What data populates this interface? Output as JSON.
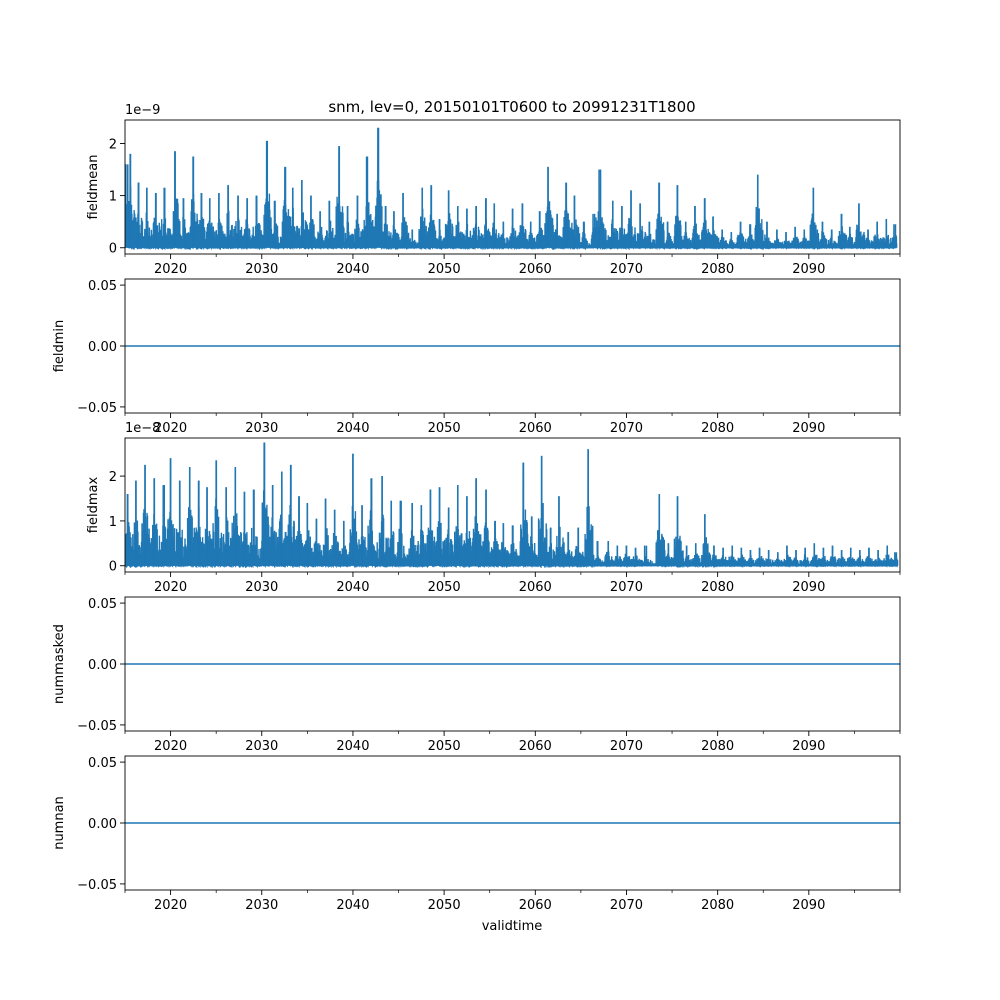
{
  "figure": {
    "title": "snm, lev=0, 20150101T0600 to 20991231T1800",
    "xlabel": "validtime"
  },
  "chart_data": [
    {
      "type": "line",
      "ylabel": "fieldmean",
      "offset_text": "1e−9",
      "scale": 1e-09,
      "xlim": [
        2015.0,
        2100.0
      ],
      "ylim": [
        -1.2e-10,
        2.45e-09
      ],
      "x_ticks": [
        2020,
        2030,
        2040,
        2050,
        2060,
        2070,
        2080,
        2090
      ],
      "x_tick_labels": [
        "2020",
        "2030",
        "2040",
        "2050",
        "2060",
        "2070",
        "2080",
        "2090"
      ],
      "y_ticks": [
        0,
        1e-09,
        2e-09
      ],
      "y_tick_labels": [
        "0",
        "1",
        "2"
      ],
      "color": "#1f77b4",
      "peaks": [
        {
          "x": 2015.3,
          "y": 1.6e-09
        },
        {
          "x": 2015.6,
          "y": 1.8e-09
        },
        {
          "x": 2016.5,
          "y": 1.25e-09
        },
        {
          "x": 2017.4,
          "y": 1.15e-09
        },
        {
          "x": 2018.4,
          "y": 1.05e-09
        },
        {
          "x": 2019.3,
          "y": 1.15e-09
        },
        {
          "x": 2020.5,
          "y": 1.85e-09
        },
        {
          "x": 2021.4,
          "y": 9.5e-10
        },
        {
          "x": 2022.5,
          "y": 1.75e-09
        },
        {
          "x": 2023.4,
          "y": 1.05e-09
        },
        {
          "x": 2024.3,
          "y": 9.5e-10
        },
        {
          "x": 2025.3,
          "y": 1.05e-09
        },
        {
          "x": 2026.3,
          "y": 1.2e-09
        },
        {
          "x": 2027.4,
          "y": 1e-09
        },
        {
          "x": 2028.4,
          "y": 9.5e-10
        },
        {
          "x": 2029.4,
          "y": 1e-09
        },
        {
          "x": 2030.6,
          "y": 2.05e-09
        },
        {
          "x": 2031.4,
          "y": 9e-10
        },
        {
          "x": 2032.6,
          "y": 1.55e-09
        },
        {
          "x": 2033.4,
          "y": 1.15e-09
        },
        {
          "x": 2034.4,
          "y": 1.3e-09
        },
        {
          "x": 2035.4,
          "y": 1e-09
        },
        {
          "x": 2036.4,
          "y": 7e-10
        },
        {
          "x": 2037.4,
          "y": 9e-10
        },
        {
          "x": 2038.5,
          "y": 1.95e-09
        },
        {
          "x": 2039.4,
          "y": 8e-10
        },
        {
          "x": 2040.5,
          "y": 1e-09
        },
        {
          "x": 2041.5,
          "y": 1.75e-09
        },
        {
          "x": 2042.8,
          "y": 2.3e-09
        },
        {
          "x": 2043.6,
          "y": 8e-10
        },
        {
          "x": 2044.5,
          "y": 7e-10
        },
        {
          "x": 2045.5,
          "y": 1.05e-09
        },
        {
          "x": 2046.5,
          "y": 3.5e-10
        },
        {
          "x": 2047.6,
          "y": 1.15e-09
        },
        {
          "x": 2048.6,
          "y": 1.2e-09
        },
        {
          "x": 2049.5,
          "y": 5.5e-10
        },
        {
          "x": 2050.5,
          "y": 1.1e-09
        },
        {
          "x": 2051.5,
          "y": 8e-10
        },
        {
          "x": 2052.5,
          "y": 7.5e-10
        },
        {
          "x": 2053.5,
          "y": 8e-10
        },
        {
          "x": 2054.6,
          "y": 9.5e-10
        },
        {
          "x": 2055.5,
          "y": 8.5e-10
        },
        {
          "x": 2056.5,
          "y": 5e-10
        },
        {
          "x": 2057.5,
          "y": 7.5e-10
        },
        {
          "x": 2058.6,
          "y": 8.5e-10
        },
        {
          "x": 2059.5,
          "y": 5e-10
        },
        {
          "x": 2060.5,
          "y": 7e-10
        },
        {
          "x": 2061.4,
          "y": 1.55e-09
        },
        {
          "x": 2062.4,
          "y": 6.5e-10
        },
        {
          "x": 2063.4,
          "y": 1.25e-09
        },
        {
          "x": 2064.3,
          "y": 1e-09
        },
        {
          "x": 2065.3,
          "y": 5e-10
        },
        {
          "x": 2066.5,
          "y": 6.5e-10
        },
        {
          "x": 2067.0,
          "y": 1.5e-09
        },
        {
          "x": 2068.5,
          "y": 9e-10
        },
        {
          "x": 2069.5,
          "y": 8e-10
        },
        {
          "x": 2070.5,
          "y": 1.1e-09
        },
        {
          "x": 2071.5,
          "y": 8.5e-10
        },
        {
          "x": 2072.5,
          "y": 5e-10
        },
        {
          "x": 2073.6,
          "y": 1.25e-09
        },
        {
          "x": 2074.5,
          "y": 5e-10
        },
        {
          "x": 2075.6,
          "y": 1.2e-09
        },
        {
          "x": 2076.5,
          "y": 5e-10
        },
        {
          "x": 2077.5,
          "y": 8e-10
        },
        {
          "x": 2078.6,
          "y": 9.5e-10
        },
        {
          "x": 2079.5,
          "y": 6e-10
        },
        {
          "x": 2080.5,
          "y": 3.5e-10
        },
        {
          "x": 2081.5,
          "y": 3e-10
        },
        {
          "x": 2082.5,
          "y": 5e-10
        },
        {
          "x": 2083.6,
          "y": 4.5e-10
        },
        {
          "x": 2084.4,
          "y": 1.4e-09
        },
        {
          "x": 2085.4,
          "y": 5e-10
        },
        {
          "x": 2086.5,
          "y": 3.5e-10
        },
        {
          "x": 2087.5,
          "y": 3e-10
        },
        {
          "x": 2088.5,
          "y": 4e-10
        },
        {
          "x": 2089.5,
          "y": 3.5e-10
        },
        {
          "x": 2090.5,
          "y": 1.15e-09
        },
        {
          "x": 2091.5,
          "y": 5e-10
        },
        {
          "x": 2092.5,
          "y": 3.5e-10
        },
        {
          "x": 2093.6,
          "y": 6.5e-10
        },
        {
          "x": 2094.5,
          "y": 4e-10
        },
        {
          "x": 2095.5,
          "y": 8.5e-10
        },
        {
          "x": 2096.5,
          "y": 3.5e-10
        },
        {
          "x": 2097.5,
          "y": 5e-10
        },
        {
          "x": 2098.5,
          "y": 5.5e-10
        },
        {
          "x": 2099.5,
          "y": 4.5e-10
        }
      ]
    },
    {
      "type": "line",
      "ylabel": "fieldmin",
      "offset_text": "",
      "scale": 1,
      "xlim": [
        2015.0,
        2100.0
      ],
      "ylim": [
        -0.055,
        0.055
      ],
      "x_ticks": [
        2020,
        2030,
        2040,
        2050,
        2060,
        2070,
        2080,
        2090
      ],
      "x_tick_labels": [
        "2020",
        "2030",
        "2040",
        "2050",
        "2060",
        "2070",
        "2080",
        "2090"
      ],
      "y_ticks": [
        -0.05,
        0.0,
        0.05
      ],
      "y_tick_labels": [
        "−0.05",
        "0.00",
        "0.05"
      ],
      "color": "#1f77b4",
      "constant_value": 0.0
    },
    {
      "type": "line",
      "ylabel": "fieldmax",
      "offset_text": "1e−8",
      "scale": 1e-08,
      "xlim": [
        2015.0,
        2100.0
      ],
      "ylim": [
        -1.4e-09,
        2.85e-08
      ],
      "x_ticks": [
        2020,
        2030,
        2040,
        2050,
        2060,
        2070,
        2080,
        2090
      ],
      "x_tick_labels": [
        "2020",
        "2030",
        "2040",
        "2050",
        "2060",
        "2070",
        "2080",
        "2090"
      ],
      "y_ticks": [
        0,
        1e-08,
        2e-08
      ],
      "y_tick_labels": [
        "0",
        "1",
        "2"
      ],
      "color": "#1f77b4",
      "peaks": [
        {
          "x": 2015.3,
          "y": 1.6e-08
        },
        {
          "x": 2016.2,
          "y": 1.9e-08
        },
        {
          "x": 2017.2,
          "y": 2.25e-08
        },
        {
          "x": 2018.2,
          "y": 1.95e-08
        },
        {
          "x": 2019.3,
          "y": 1.8e-08
        },
        {
          "x": 2020.0,
          "y": 2.4e-08
        },
        {
          "x": 2021.0,
          "y": 1.9e-08
        },
        {
          "x": 2022.1,
          "y": 2.2e-08
        },
        {
          "x": 2023.1,
          "y": 1.9e-08
        },
        {
          "x": 2024.0,
          "y": 1.75e-08
        },
        {
          "x": 2025.0,
          "y": 2.35e-08
        },
        {
          "x": 2026.1,
          "y": 1.75e-08
        },
        {
          "x": 2027.1,
          "y": 2.2e-08
        },
        {
          "x": 2028.1,
          "y": 1.65e-08
        },
        {
          "x": 2029.1,
          "y": 1.7e-08
        },
        {
          "x": 2030.3,
          "y": 2.75e-08
        },
        {
          "x": 2031.2,
          "y": 1.8e-08
        },
        {
          "x": 2032.2,
          "y": 2.1e-08
        },
        {
          "x": 2033.2,
          "y": 2.25e-08
        },
        {
          "x": 2034.1,
          "y": 1.55e-08
        },
        {
          "x": 2035.0,
          "y": 1.4e-08
        },
        {
          "x": 2036.0,
          "y": 1.05e-08
        },
        {
          "x": 2037.0,
          "y": 1.5e-08
        },
        {
          "x": 2038.0,
          "y": 1.25e-08
        },
        {
          "x": 2039.0,
          "y": 1e-08
        },
        {
          "x": 2040.0,
          "y": 2.5e-08
        },
        {
          "x": 2041.0,
          "y": 1.35e-08
        },
        {
          "x": 2042.0,
          "y": 1.95e-08
        },
        {
          "x": 2043.2,
          "y": 2e-08
        },
        {
          "x": 2044.2,
          "y": 1.45e-08
        },
        {
          "x": 2045.2,
          "y": 1.45e-08
        },
        {
          "x": 2046.5,
          "y": 1.4e-08
        },
        {
          "x": 2047.5,
          "y": 1.35e-08
        },
        {
          "x": 2048.5,
          "y": 1.7e-08
        },
        {
          "x": 2049.5,
          "y": 1.75e-08
        },
        {
          "x": 2050.5,
          "y": 1.3e-08
        },
        {
          "x": 2051.5,
          "y": 1.8e-08
        },
        {
          "x": 2052.5,
          "y": 1.55e-08
        },
        {
          "x": 2053.5,
          "y": 1.95e-08
        },
        {
          "x": 2054.6,
          "y": 1.7e-08
        },
        {
          "x": 2055.6,
          "y": 1e-08
        },
        {
          "x": 2056.5,
          "y": 9.5e-09
        },
        {
          "x": 2057.5,
          "y": 9e-09
        },
        {
          "x": 2058.7,
          "y": 2.3e-08
        },
        {
          "x": 2059.6,
          "y": 1.1e-08
        },
        {
          "x": 2060.7,
          "y": 2.45e-08
        },
        {
          "x": 2061.7,
          "y": 8.5e-09
        },
        {
          "x": 2062.6,
          "y": 1.55e-08
        },
        {
          "x": 2063.6,
          "y": 7.5e-09
        },
        {
          "x": 2064.7,
          "y": 8.5e-09
        },
        {
          "x": 2065.8,
          "y": 2.6e-08
        },
        {
          "x": 2066.8,
          "y": 5.5e-09
        },
        {
          "x": 2068.0,
          "y": 5.5e-09
        },
        {
          "x": 2069.0,
          "y": 4.5e-09
        },
        {
          "x": 2070.0,
          "y": 4.5e-09
        },
        {
          "x": 2071.0,
          "y": 4e-09
        },
        {
          "x": 2072.0,
          "y": 4.5e-09
        },
        {
          "x": 2073.6,
          "y": 1.6e-08
        },
        {
          "x": 2074.6,
          "y": 5e-09
        },
        {
          "x": 2075.6,
          "y": 1.55e-08
        },
        {
          "x": 2076.6,
          "y": 4.5e-09
        },
        {
          "x": 2077.6,
          "y": 5e-09
        },
        {
          "x": 2078.6,
          "y": 1.15e-08
        },
        {
          "x": 2079.6,
          "y": 4.5e-09
        },
        {
          "x": 2080.6,
          "y": 4e-09
        },
        {
          "x": 2081.6,
          "y": 4.5e-09
        },
        {
          "x": 2082.6,
          "y": 4e-09
        },
        {
          "x": 2083.6,
          "y": 3.5e-09
        },
        {
          "x": 2084.6,
          "y": 4e-09
        },
        {
          "x": 2085.6,
          "y": 3.5e-09
        },
        {
          "x": 2086.6,
          "y": 3e-09
        },
        {
          "x": 2087.6,
          "y": 4.5e-09
        },
        {
          "x": 2088.6,
          "y": 3.5e-09
        },
        {
          "x": 2089.6,
          "y": 4e-09
        },
        {
          "x": 2090.6,
          "y": 5e-09
        },
        {
          "x": 2091.6,
          "y": 4e-09
        },
        {
          "x": 2092.6,
          "y": 4.5e-09
        },
        {
          "x": 2093.6,
          "y": 3.5e-09
        },
        {
          "x": 2094.6,
          "y": 4e-09
        },
        {
          "x": 2095.6,
          "y": 3.5e-09
        },
        {
          "x": 2096.6,
          "y": 4e-09
        },
        {
          "x": 2097.6,
          "y": 3.5e-09
        },
        {
          "x": 2098.6,
          "y": 4.5e-09
        },
        {
          "x": 2099.6,
          "y": 3e-09
        }
      ]
    },
    {
      "type": "line",
      "ylabel": "nummasked",
      "offset_text": "",
      "scale": 1,
      "xlim": [
        2015.0,
        2100.0
      ],
      "ylim": [
        -0.055,
        0.055
      ],
      "x_ticks": [
        2020,
        2030,
        2040,
        2050,
        2060,
        2070,
        2080,
        2090
      ],
      "x_tick_labels": [
        "2020",
        "2030",
        "2040",
        "2050",
        "2060",
        "2070",
        "2080",
        "2090"
      ],
      "y_ticks": [
        -0.05,
        0.0,
        0.05
      ],
      "y_tick_labels": [
        "−0.05",
        "0.00",
        "0.05"
      ],
      "color": "#1f77b4",
      "constant_value": 0.0
    },
    {
      "type": "line",
      "ylabel": "numnan",
      "offset_text": "",
      "scale": 1,
      "xlim": [
        2015.0,
        2100.0
      ],
      "ylim": [
        -0.055,
        0.055
      ],
      "x_ticks": [
        2020,
        2030,
        2040,
        2050,
        2060,
        2070,
        2080,
        2090
      ],
      "x_tick_labels": [
        "2020",
        "2030",
        "2040",
        "2050",
        "2060",
        "2070",
        "2080",
        "2090"
      ],
      "y_ticks": [
        -0.05,
        0.0,
        0.05
      ],
      "y_tick_labels": [
        "−0.05",
        "0.00",
        "0.05"
      ],
      "color": "#1f77b4",
      "constant_value": 0.0
    }
  ]
}
